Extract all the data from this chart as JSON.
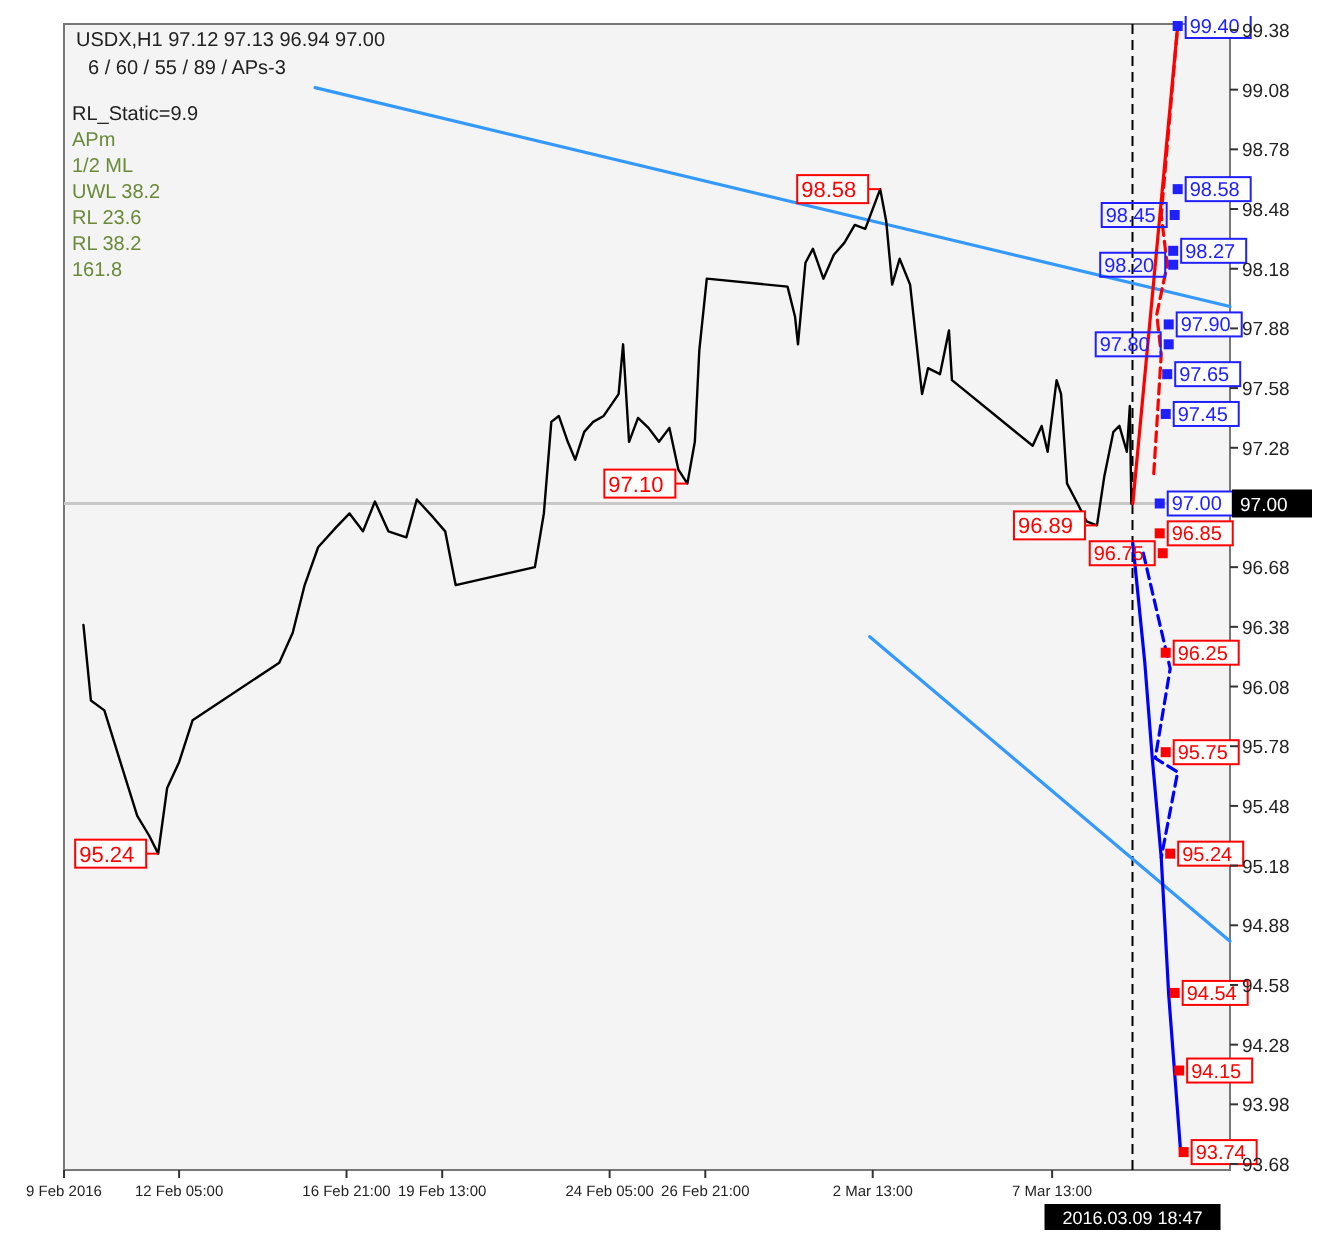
{
  "chart_data": {
    "type": "line",
    "title": "USDX,H1  97.12 97.13 96.94 97.00",
    "subtitle": "6 / 60 / 55 / 89 / APs-3",
    "xlim": [
      "2016-02-09T00:00",
      "2016-03-12T12:00"
    ],
    "ylim": [
      93.65,
      99.41
    ],
    "xticks": [
      {
        "value": "2016-02-09T00:00",
        "label": "9 Feb 2016"
      },
      {
        "value": "2016-02-12T05:00",
        "label": "12 Feb 05:00"
      },
      {
        "value": "2016-02-16T21:00",
        "label": "16 Feb 21:00"
      },
      {
        "value": "2016-02-19T13:00",
        "label": "19 Feb 13:00"
      },
      {
        "value": "2016-02-24T05:00",
        "label": "24 Feb 05:00"
      },
      {
        "value": "2016-02-26T21:00",
        "label": "26 Feb 21:00"
      },
      {
        "value": "2016-03-02T13:00",
        "label": "2 Mar 13:00"
      },
      {
        "value": "2016-03-07T13:00",
        "label": "7 Mar 13:00"
      }
    ],
    "yticks": [
      99.38,
      99.08,
      98.78,
      98.48,
      98.18,
      97.88,
      97.58,
      97.28,
      96.68,
      96.38,
      96.08,
      95.78,
      95.48,
      95.18,
      94.88,
      94.58,
      94.28,
      93.98,
      93.68
    ],
    "grid": false,
    "series": [
      {
        "color": "#3399ff",
        "x": [
          "2016-02-16T00:00",
          "2016-03-12T12:00"
        ],
        "values": [
          99.09,
          97.99
        ]
      },
      {
        "color": "#3399ff",
        "x": [
          "2016-03-02T11:00",
          "2016-03-12T12:00"
        ],
        "values": [
          96.33,
          94.8
        ]
      },
      {
        "color": "#000000",
        "x": [
          "2016-02-09T13:00",
          "2016-02-09T18:00",
          "2016-02-10T03:00",
          "2016-02-10T15:00",
          "2016-02-11T01:00",
          "2016-02-11T09:00",
          "2016-02-11T15:00",
          "2016-02-11T21:00",
          "2016-02-12T05:00",
          "2016-02-12T14:00",
          "2016-02-15T00:00",
          "2016-02-15T09:00",
          "2016-02-15T17:00",
          "2016-02-16T02:00",
          "2016-02-16T14:00",
          "2016-02-16T23:00",
          "2016-02-17T08:00",
          "2016-02-17T16:00",
          "2016-02-18T01:00",
          "2016-02-18T13:00",
          "2016-02-18T20:00",
          "2016-02-19T07:00",
          "2016-02-19T15:00",
          "2016-02-19T22:00",
          "2016-02-22T03:00",
          "2016-02-22T09:00",
          "2016-02-22T14:00",
          "2016-02-22T19:00",
          "2016-02-23T01:00",
          "2016-02-23T06:00",
          "2016-02-23T12:00",
          "2016-02-23T18:00",
          "2016-02-24T01:00",
          "2016-02-24T11:00",
          "2016-02-24T14:00",
          "2016-02-24T18:00",
          "2016-02-25T00:00",
          "2016-02-25T07:00",
          "2016-02-25T14:00",
          "2016-02-25T21:00",
          "2016-02-26T03:00",
          "2016-02-26T09:00",
          "2016-02-26T14:00",
          "2016-02-26T17:00",
          "2016-02-26T22:00",
          "2016-02-29T04:00",
          "2016-02-29T09:00",
          "2016-02-29T11:00",
          "2016-02-29T16:00",
          "2016-02-29T21:00",
          "2016-03-01T04:00",
          "2016-03-01T11:00",
          "2016-03-01T18:00",
          "2016-03-02T01:00",
          "2016-03-02T08:00",
          "2016-03-02T18:00",
          "2016-03-02T22:00",
          "2016-03-03T02:00",
          "2016-03-03T07:00",
          "2016-03-03T14:00",
          "2016-03-03T22:00",
          "2016-03-04T02:00",
          "2016-03-04T10:00",
          "2016-03-04T16:00",
          "2016-03-04T18:00",
          "2016-03-07T00:00",
          "2016-03-07T06:00",
          "2016-03-07T10:00",
          "2016-03-07T16:00",
          "2016-03-07T19:00",
          "2016-03-07T23:00",
          "2016-03-08T06:00",
          "2016-03-08T12:00",
          "2016-03-08T19:00",
          "2016-03-09T00:00",
          "2016-03-09T06:00",
          "2016-03-09T10:00",
          "2016-03-09T15:00",
          "2016-03-09T17:00",
          "2016-03-09T18:00"
        ],
        "values": [
          96.39,
          96.01,
          95.96,
          95.67,
          95.43,
          95.33,
          95.24,
          95.57,
          95.7,
          95.91,
          96.2,
          96.35,
          96.59,
          96.78,
          96.88,
          96.95,
          96.86,
          97.01,
          96.86,
          96.83,
          97.02,
          96.93,
          96.86,
          96.59,
          96.68,
          96.95,
          97.41,
          97.44,
          97.31,
          97.22,
          97.36,
          97.41,
          97.44,
          97.55,
          97.8,
          97.31,
          97.43,
          97.38,
          97.31,
          97.38,
          97.17,
          97.1,
          97.31,
          97.77,
          98.13,
          98.09,
          97.94,
          97.8,
          98.21,
          98.28,
          98.13,
          98.25,
          98.31,
          98.4,
          98.38,
          98.58,
          98.42,
          98.1,
          98.23,
          98.1,
          97.55,
          97.68,
          97.65,
          97.87,
          97.62,
          97.29,
          97.39,
          97.26,
          97.62,
          97.55,
          97.1,
          97.0,
          96.91,
          96.89,
          97.14,
          97.36,
          97.39,
          97.26,
          97.49,
          97.0
        ]
      },
      {
        "color": "#ff0000",
        "x": [
          "2016-03-09T19:00",
          "2016-03-11T01:00"
        ],
        "values": [
          97.0,
          99.4
        ]
      },
      {
        "color": "#ff0000",
        "line_style": "dashed",
        "x": [
          "2016-03-10T09:00",
          "2016-03-10T14:00",
          "2016-03-10T11:00",
          "2016-03-10T18:00",
          "2016-03-10T14:00",
          "2016-03-11T01:00"
        ],
        "values": [
          97.15,
          97.75,
          97.95,
          98.2,
          98.45,
          99.4
        ]
      },
      {
        "color": "#0000ff",
        "x": [
          "2016-03-09T19:00",
          "2016-03-10T03:00",
          "2016-03-10T08:00",
          "2016-03-10T14:00",
          "2016-03-10T19:00",
          "2016-03-11T03:00"
        ],
        "values": [
          96.8,
          96.2,
          95.72,
          95.22,
          94.53,
          93.74
        ]
      },
      {
        "color": "#0000ff",
        "line_style": "dashed",
        "x": [
          "2016-03-10T02:00",
          "2016-03-10T20:00",
          "2016-03-10T10:00",
          "2016-03-11T01:00",
          "2016-03-10T14:00"
        ],
        "values": [
          96.75,
          96.17,
          95.72,
          95.65,
          95.22
        ]
      },
      {
        "type": "scatter",
        "marker": "square",
        "color": "#2020ff",
        "x": [
          "2016-03-11T01:00",
          "2016-03-11T01:00",
          "2016-03-10T23:00",
          "2016-03-10T22:00",
          "2016-03-10T22:00",
          "2016-03-10T19:00",
          "2016-03-10T19:00",
          "2016-03-10T18:00",
          "2016-03-10T17:00",
          "2016-03-10T13:00"
        ],
        "values": [
          99.4,
          98.58,
          98.45,
          98.27,
          98.2,
          97.9,
          97.8,
          97.65,
          97.45,
          97.0
        ],
        "value_labels": [
          "99.40",
          "98.58",
          "98.45",
          "98.27",
          "98.20",
          "97.90",
          "97.80",
          "97.65",
          "97.45",
          "97.00"
        ]
      },
      {
        "type": "scatter",
        "marker": "square",
        "color": "#ff0000",
        "x": [
          "2016-03-10T13:00",
          "2016-03-10T15:00",
          "2016-03-10T17:00",
          "2016-03-10T17:00",
          "2016-03-10T20:00",
          "2016-03-10T23:00",
          "2016-03-11T02:00",
          "2016-03-11T05:00"
        ],
        "values": [
          96.85,
          96.75,
          96.25,
          95.75,
          95.24,
          94.54,
          94.15,
          93.74
        ],
        "value_labels": [
          "96.85",
          "96.75",
          "96.25",
          "95.75",
          "95.24",
          "94.54",
          "94.15",
          "93.74"
        ]
      }
    ],
    "ref_lines": [
      {
        "axis": "y",
        "value": 97.0,
        "label": "97.00",
        "color": "#c8c8c8"
      },
      {
        "axis": "x",
        "value": "2016-03-09T18:47",
        "label": "2016.03.09 18:47",
        "color": "#000000",
        "line_style": "dashed"
      }
    ],
    "annotations": [
      "RL_Static=9.9",
      "APm",
      "1/2 ML",
      "UWL 38.2",
      "RL 23.6",
      "RL 38.2",
      "161.8",
      {
        "text": "98.58",
        "x": "2016-03-02T18:00",
        "y": 98.58
      },
      {
        "text": "97.10",
        "x": "2016-02-26T09:00",
        "y": 97.1
      },
      {
        "text": "96.89",
        "x": "2016-03-08T19:00",
        "y": 96.89
      },
      {
        "text": "95.24",
        "x": "2016-02-11T15:00",
        "y": 95.24
      }
    ]
  }
}
